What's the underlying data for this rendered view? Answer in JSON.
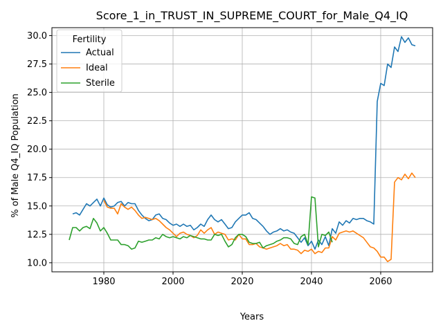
{
  "chart_data": {
    "type": "line",
    "title": "Score_1_in_TRUST_IN_SUPREME_COURT_for_Male_Q4_IQ",
    "xlabel": "Years",
    "ylabel": "% of Male Q4_IQ Population",
    "xlim": [
      1965,
      2075
    ],
    "ylim": [
      9.2,
      30.7
    ],
    "xticks": [
      1980,
      2000,
      2020,
      2040,
      2060
    ],
    "yticks": [
      10.0,
      12.5,
      15.0,
      17.5,
      20.0,
      22.5,
      25.0,
      27.5,
      30.0
    ],
    "ytick_labels": [
      "10.0",
      "12.5",
      "15.0",
      "17.5",
      "20.0",
      "22.5",
      "25.0",
      "27.5",
      "30.0"
    ],
    "grid": true,
    "legend": {
      "title": "Fertility",
      "placement": "top-left"
    },
    "series": [
      {
        "name": "Actual",
        "color": "#1f77b4",
        "x": [
          1971,
          1972,
          1973,
          1974,
          1975,
          1976,
          1977,
          1978,
          1979,
          1980,
          1981,
          1982,
          1983,
          1984,
          1985,
          1986,
          1987,
          1988,
          1989,
          1990,
          1991,
          1992,
          1993,
          1994,
          1995,
          1996,
          1997,
          1998,
          1999,
          2000,
          2001,
          2002,
          2003,
          2004,
          2005,
          2006,
          2007,
          2008,
          2009,
          2010,
          2011,
          2012,
          2013,
          2014,
          2015,
          2016,
          2017,
          2018,
          2019,
          2020,
          2021,
          2022,
          2023,
          2024,
          2025,
          2026,
          2027,
          2028,
          2029,
          2030,
          2031,
          2032,
          2033,
          2034,
          2035,
          2036,
          2037,
          2038,
          2039,
          2040,
          2041,
          2042,
          2043,
          2044,
          2045,
          2046,
          2047,
          2048,
          2049,
          2050,
          2051,
          2052,
          2053,
          2054,
          2055,
          2056,
          2057,
          2058,
          2059,
          2060,
          2061,
          2062,
          2063,
          2064,
          2065,
          2066,
          2067,
          2068,
          2069,
          2070
        ],
        "y": [
          14.3,
          14.4,
          14.2,
          14.7,
          15.2,
          15.0,
          15.3,
          15.6,
          15.0,
          15.7,
          15.1,
          14.9,
          15.0,
          15.3,
          15.4,
          15.0,
          15.3,
          15.2,
          15.2,
          14.6,
          14.2,
          13.9,
          13.7,
          13.8,
          14.2,
          14.3,
          13.9,
          13.8,
          13.5,
          13.3,
          13.4,
          13.2,
          13.4,
          13.2,
          13.3,
          12.9,
          13.1,
          13.4,
          13.2,
          13.8,
          14.2,
          13.8,
          13.6,
          13.8,
          13.4,
          13.0,
          13.1,
          13.6,
          13.9,
          14.2,
          14.2,
          14.4,
          13.9,
          13.8,
          13.5,
          13.2,
          12.8,
          12.5,
          12.7,
          12.8,
          13.0,
          12.8,
          12.9,
          12.7,
          12.6,
          12.2,
          11.8,
          12.2,
          11.5,
          11.9,
          11.2,
          12.0,
          11.6,
          12.3,
          11.5,
          13.0,
          12.6,
          13.6,
          13.3,
          13.7,
          13.5,
          13.9,
          13.8,
          13.9,
          13.9,
          13.7,
          13.6,
          13.4,
          24.2,
          25.8,
          25.6,
          27.5,
          27.2,
          29.0,
          28.6,
          29.9,
          29.4,
          29.8,
          29.2,
          29.1
        ]
      },
      {
        "name": "Ideal",
        "color": "#ff7f0e",
        "x": [
          1980,
          1981,
          1982,
          1983,
          1984,
          1985,
          1986,
          1987,
          1988,
          1989,
          1990,
          1991,
          1992,
          1993,
          1994,
          1995,
          1996,
          1997,
          1998,
          1999,
          2000,
          2001,
          2002,
          2003,
          2004,
          2005,
          2006,
          2007,
          2008,
          2009,
          2010,
          2011,
          2012,
          2013,
          2014,
          2015,
          2016,
          2017,
          2018,
          2019,
          2020,
          2021,
          2022,
          2023,
          2024,
          2025,
          2026,
          2027,
          2028,
          2029,
          2030,
          2031,
          2032,
          2033,
          2034,
          2035,
          2036,
          2037,
          2038,
          2039,
          2040,
          2041,
          2042,
          2043,
          2044,
          2045,
          2046,
          2047,
          2048,
          2049,
          2050,
          2051,
          2052,
          2053,
          2054,
          2055,
          2056,
          2057,
          2058,
          2059,
          2060,
          2061,
          2062,
          2063,
          2064,
          2065,
          2066,
          2067,
          2068,
          2069,
          2070
        ],
        "y": [
          15.5,
          14.9,
          14.8,
          14.8,
          14.3,
          15.2,
          14.9,
          14.7,
          14.9,
          14.6,
          14.2,
          13.9,
          14.0,
          13.9,
          13.8,
          13.9,
          13.7,
          13.4,
          13.1,
          12.9,
          12.6,
          12.3,
          12.6,
          12.7,
          12.5,
          12.4,
          12.2,
          12.4,
          12.9,
          12.6,
          12.9,
          13.1,
          12.5,
          12.7,
          12.6,
          12.5,
          12.0,
          12.1,
          12.0,
          12.5,
          12.1,
          12.1,
          11.6,
          11.6,
          11.7,
          11.4,
          11.3,
          11.2,
          11.3,
          11.4,
          11.5,
          11.7,
          11.5,
          11.6,
          11.2,
          11.2,
          11.1,
          10.8,
          11.1,
          11.0,
          11.2,
          10.8,
          11.0,
          10.9,
          11.3,
          11.3,
          12.3,
          12.0,
          12.6,
          12.7,
          12.8,
          12.7,
          12.8,
          12.6,
          12.4,
          12.2,
          11.8,
          11.4,
          11.3,
          11.0,
          10.5,
          10.5,
          10.1,
          10.3,
          17.1,
          17.5,
          17.3,
          17.8,
          17.4,
          17.9,
          17.5
        ]
      },
      {
        "name": "Sterile",
        "color": "#2ca02c",
        "x": [
          1970,
          1971,
          1972,
          1973,
          1974,
          1975,
          1976,
          1977,
          1978,
          1979,
          1980,
          1981,
          1982,
          1983,
          1984,
          1985,
          1986,
          1987,
          1988,
          1989,
          1990,
          1991,
          1992,
          1993,
          1994,
          1995,
          1996,
          1997,
          1998,
          1999,
          2000,
          2001,
          2002,
          2003,
          2004,
          2005,
          2006,
          2007,
          2008,
          2009,
          2010,
          2011,
          2012,
          2013,
          2014,
          2015,
          2016,
          2017,
          2018,
          2019,
          2020,
          2021,
          2022,
          2023,
          2024,
          2025,
          2026,
          2027,
          2028,
          2029,
          2030,
          2031,
          2032,
          2033,
          2034,
          2035,
          2036,
          2037,
          2038,
          2039,
          2040,
          2041,
          2042,
          2043,
          2044,
          2045,
          2046
        ],
        "y": [
          12.0,
          13.1,
          13.1,
          12.8,
          13.1,
          13.2,
          13.0,
          13.9,
          13.5,
          12.8,
          13.1,
          12.6,
          12.0,
          12.0,
          12.0,
          11.6,
          11.6,
          11.5,
          11.2,
          11.3,
          11.9,
          11.8,
          11.9,
          12.0,
          12.0,
          12.2,
          12.1,
          12.5,
          12.3,
          12.2,
          12.3,
          12.2,
          12.1,
          12.3,
          12.2,
          12.4,
          12.3,
          12.2,
          12.1,
          12.1,
          12.0,
          12.0,
          12.5,
          12.4,
          12.5,
          11.9,
          11.4,
          11.6,
          12.2,
          12.5,
          12.5,
          12.3,
          11.8,
          11.7,
          11.7,
          11.8,
          11.3,
          11.5,
          11.6,
          11.7,
          11.9,
          12.0,
          12.2,
          12.2,
          12.1,
          11.7,
          11.6,
          12.3,
          12.5,
          11.6,
          15.8,
          15.7,
          11.4,
          12.5,
          12.4,
          12.7,
          11.8
        ]
      }
    ]
  }
}
